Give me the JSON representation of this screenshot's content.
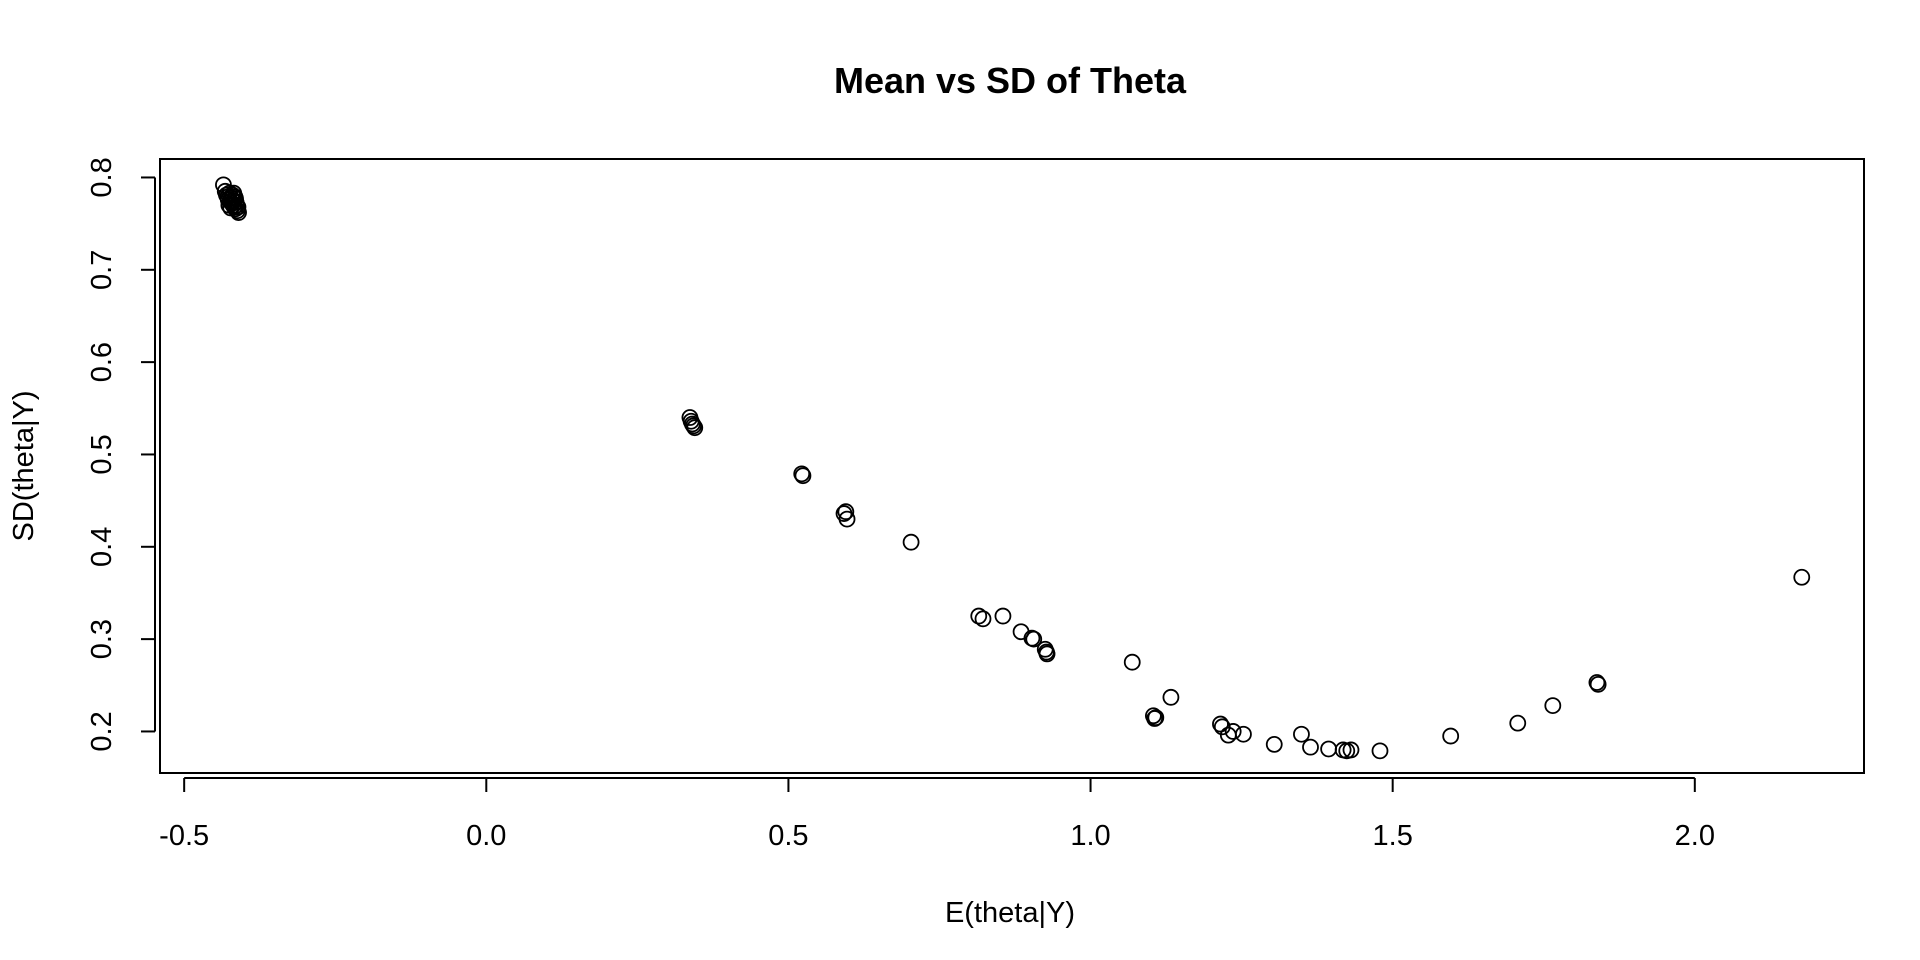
{
  "chart_data": {
    "type": "scatter",
    "title": "Mean vs SD of Theta",
    "xlabel": "E(theta|Y)",
    "ylabel": "SD(theta|Y)",
    "xlim": [
      -0.54,
      2.28
    ],
    "ylim": [
      0.155,
      0.82
    ],
    "xticks": [
      -0.5,
      0.0,
      0.5,
      1.0,
      1.5,
      2.0
    ],
    "xtick_labels": [
      "-0.5",
      "0.0",
      "0.5",
      "1.0",
      "1.5",
      "2.0"
    ],
    "yticks": [
      0.2,
      0.3,
      0.4,
      0.5,
      0.6,
      0.7,
      0.8
    ],
    "ytick_labels": [
      "0.2",
      "0.3",
      "0.4",
      "0.5",
      "0.6",
      "0.7",
      "0.8"
    ],
    "grid": false,
    "legend": "none",
    "marker": "open-circle",
    "color": "#000000",
    "points": [
      [
        -0.435,
        0.792
      ],
      [
        -0.432,
        0.785
      ],
      [
        -0.43,
        0.781
      ],
      [
        -0.428,
        0.779
      ],
      [
        -0.427,
        0.776
      ],
      [
        -0.425,
        0.783
      ],
      [
        -0.424,
        0.774
      ],
      [
        -0.422,
        0.778
      ],
      [
        -0.421,
        0.772
      ],
      [
        -0.42,
        0.781
      ],
      [
        -0.419,
        0.77
      ],
      [
        -0.418,
        0.775
      ],
      [
        -0.417,
        0.768
      ],
      [
        -0.416,
        0.779
      ],
      [
        -0.415,
        0.766
      ],
      [
        -0.414,
        0.773
      ],
      [
        -0.413,
        0.77
      ],
      [
        -0.412,
        0.764
      ],
      [
        -0.411,
        0.768
      ],
      [
        -0.41,
        0.762
      ],
      [
        -0.426,
        0.77
      ],
      [
        -0.423,
        0.767
      ],
      [
        -0.418,
        0.783
      ],
      [
        -0.415,
        0.777
      ],
      [
        0.337,
        0.54
      ],
      [
        0.339,
        0.536
      ],
      [
        0.341,
        0.533
      ],
      [
        0.343,
        0.531
      ],
      [
        0.345,
        0.529
      ],
      [
        0.522,
        0.479
      ],
      [
        0.524,
        0.477
      ],
      [
        0.592,
        0.436
      ],
      [
        0.595,
        0.438
      ],
      [
        0.597,
        0.43
      ],
      [
        0.703,
        0.405
      ],
      [
        0.815,
        0.325
      ],
      [
        0.822,
        0.322
      ],
      [
        0.855,
        0.325
      ],
      [
        0.885,
        0.308
      ],
      [
        0.903,
        0.301
      ],
      [
        0.906,
        0.3
      ],
      [
        0.925,
        0.289
      ],
      [
        0.927,
        0.286
      ],
      [
        0.928,
        0.284
      ],
      [
        1.069,
        0.275
      ],
      [
        1.104,
        0.217
      ],
      [
        1.106,
        0.214
      ],
      [
        1.108,
        0.215
      ],
      [
        1.133,
        0.237
      ],
      [
        1.215,
        0.208
      ],
      [
        1.218,
        0.205
      ],
      [
        1.228,
        0.196
      ],
      [
        1.236,
        0.2
      ],
      [
        1.253,
        0.197
      ],
      [
        1.304,
        0.186
      ],
      [
        1.349,
        0.197
      ],
      [
        1.364,
        0.183
      ],
      [
        1.394,
        0.181
      ],
      [
        1.418,
        0.18
      ],
      [
        1.424,
        0.179
      ],
      [
        1.431,
        0.18
      ],
      [
        1.479,
        0.179
      ],
      [
        1.596,
        0.195
      ],
      [
        1.707,
        0.209
      ],
      [
        1.765,
        0.228
      ],
      [
        1.838,
        0.253
      ],
      [
        1.84,
        0.251
      ],
      [
        2.177,
        0.367
      ]
    ]
  }
}
